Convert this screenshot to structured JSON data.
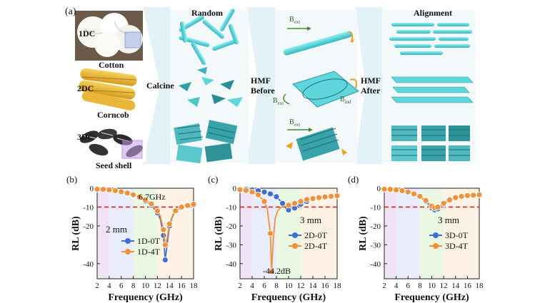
{
  "panel_a": {
    "label": "(a)",
    "materials": [
      {
        "code": "1DC",
        "name": "Cotton"
      },
      {
        "code": "2DC",
        "name": "Corncob"
      },
      {
        "code": "3DC",
        "name": "Seed shell"
      }
    ],
    "calcine_label": "Calcine",
    "random_label": "Random",
    "alignment_label": "Alignment",
    "hmf_before": [
      "HMF",
      "Before"
    ],
    "hmf_after": [
      "HMF",
      "After"
    ],
    "b_ext": "B",
    "b_ext_sub": "ext",
    "b_ind": "B",
    "b_ind_sub": "ind",
    "colors": {
      "cyan": "#5fd6dc",
      "cyan_dark": "#2a9aa4",
      "arrow_bg": "#dff1f7",
      "field_arrow": "#4a8a2a",
      "orange": "#f0a020"
    }
  },
  "chart_data": [
    {
      "panel": "(b)",
      "type": "line",
      "xlabel": "Frequency (GHz)",
      "ylabel": "RL (dB)",
      "xlim": [
        2,
        18
      ],
      "ylim": [
        -48,
        0
      ],
      "xticks": [
        2,
        4,
        6,
        8,
        10,
        12,
        14,
        16,
        18
      ],
      "yticks": [
        0,
        -10,
        -20,
        -40
      ],
      "ref_line": -10,
      "thickness_label": "2 mm",
      "annotation": "6.7GHz",
      "series": [
        {
          "name": "1D-0T",
          "color": "#3f6fd0",
          "x": [
            2,
            3,
            4,
            5,
            6,
            7,
            8,
            9,
            10,
            11,
            12,
            12.5,
            13,
            13.3,
            13.6,
            14,
            14.5,
            15,
            16,
            17,
            18
          ],
          "y": [
            -0.5,
            -0.7,
            -1,
            -1.4,
            -2,
            -2.8,
            -3.8,
            -5,
            -6.8,
            -9,
            -13,
            -16.5,
            -25,
            -38,
            -30,
            -20,
            -15,
            -12,
            -10,
            -9.5,
            -9
          ]
        },
        {
          "name": "1D-4T",
          "color": "#f0913a",
          "x": [
            2,
            3,
            4,
            5,
            6,
            7,
            8,
            9,
            10,
            11,
            12,
            12.5,
            13,
            13.3,
            13.6,
            14,
            14.5,
            15,
            16,
            17,
            18
          ],
          "y": [
            -0.5,
            -0.6,
            -0.9,
            -1.3,
            -1.9,
            -2.6,
            -3.5,
            -4.6,
            -6.2,
            -8.3,
            -12,
            -15,
            -22,
            -30,
            -27,
            -19,
            -14.5,
            -12,
            -10,
            -9.2,
            -8.5
          ]
        }
      ],
      "shade_regions": [
        {
          "from": 2,
          "to": 4,
          "color": "#f1e2f6"
        },
        {
          "from": 4,
          "to": 8,
          "color": "#e9ecfb"
        },
        {
          "from": 8,
          "to": 12,
          "color": "#eaf7e3"
        },
        {
          "from": 12,
          "to": 18,
          "color": "#fdf2e3"
        }
      ]
    },
    {
      "panel": "(c)",
      "type": "line",
      "xlabel": "Frequency (GHz)",
      "ylabel": "RL (dB)",
      "xlim": [
        2,
        18
      ],
      "ylim": [
        -48,
        0
      ],
      "xticks": [
        2,
        4,
        6,
        8,
        10,
        12,
        14,
        16,
        18
      ],
      "yticks": [
        0,
        -10,
        -20,
        -30,
        -40
      ],
      "ref_line": -10,
      "thickness_label": "3 mm",
      "annotation": "-44.2dB",
      "series": [
        {
          "name": "2D-0T",
          "color": "#3f6fd0",
          "x": [
            2,
            3,
            4,
            5,
            6,
            7,
            8,
            9,
            9.5,
            10,
            11,
            12,
            13,
            14,
            15,
            16,
            17,
            18
          ],
          "y": [
            -0.5,
            -0.6,
            -0.9,
            -1.3,
            -2,
            -3,
            -4.5,
            -8,
            -10.5,
            -11.5,
            -10.5,
            -8.5,
            -7,
            -5.8,
            -5,
            -4.5,
            -4.2,
            -4
          ]
        },
        {
          "name": "2D-4T",
          "color": "#f0913a",
          "x": [
            2,
            3,
            4,
            5,
            6,
            6.5,
            7,
            7.2,
            7.5,
            7.8,
            8.2,
            8.8,
            9.5,
            10,
            11,
            12,
            13,
            14,
            15,
            16,
            17,
            18
          ],
          "y": [
            -0.8,
            -1.2,
            -2,
            -3.5,
            -7,
            -11,
            -24,
            -44.2,
            -26,
            -16,
            -12,
            -10,
            -9.5,
            -9,
            -8,
            -7,
            -6,
            -5.5,
            -5,
            -4.6,
            -4.3,
            -4
          ]
        }
      ],
      "shade_regions": [
        {
          "from": 2,
          "to": 4,
          "color": "#f1e2f6"
        },
        {
          "from": 4,
          "to": 8,
          "color": "#e9ecfb"
        },
        {
          "from": 8,
          "to": 12,
          "color": "#eaf7e3"
        },
        {
          "from": 12,
          "to": 18,
          "color": "#fdf2e3"
        }
      ]
    },
    {
      "panel": "(d)",
      "type": "line",
      "xlabel": "Frequency (GHz)",
      "ylabel": "RL (dB)",
      "xlim": [
        2,
        18
      ],
      "ylim": [
        -48,
        0
      ],
      "xticks": [
        2,
        4,
        6,
        8,
        10,
        12,
        14,
        16,
        18
      ],
      "yticks": [
        0,
        -10,
        -20,
        -30,
        -40
      ],
      "ref_line": -10,
      "thickness_label": "3 mm",
      "series": [
        {
          "name": "3D-0T",
          "color": "#3f6fd0",
          "x": [
            2,
            3,
            4,
            5,
            6,
            7,
            8,
            9,
            10,
            10.5,
            11,
            12,
            13,
            14,
            15,
            16,
            17,
            18
          ],
          "y": [
            -0.5,
            -0.6,
            -0.9,
            -1.3,
            -2,
            -3,
            -4.5,
            -7,
            -10.5,
            -11.5,
            -11,
            -8.5,
            -6.5,
            -5.2,
            -4.5,
            -4,
            -3.8,
            -3.6
          ]
        },
        {
          "name": "3D-4T",
          "color": "#f0913a",
          "x": [
            2,
            3,
            4,
            5,
            6,
            7,
            8,
            9,
            10,
            10.5,
            11,
            12,
            13,
            14,
            15,
            16,
            17,
            18
          ],
          "y": [
            -0.5,
            -0.6,
            -0.9,
            -1.3,
            -2,
            -3,
            -4.3,
            -6.5,
            -9.5,
            -10.5,
            -10,
            -8,
            -6.2,
            -5,
            -4.3,
            -3.9,
            -3.7,
            -3.5
          ]
        }
      ],
      "shade_regions": [
        {
          "from": 2,
          "to": 4,
          "color": "#f1e2f6"
        },
        {
          "from": 4,
          "to": 8,
          "color": "#e9ecfb"
        },
        {
          "from": 8,
          "to": 12,
          "color": "#eaf7e3"
        },
        {
          "from": 12,
          "to": 18,
          "color": "#fdf2e3"
        }
      ]
    }
  ]
}
